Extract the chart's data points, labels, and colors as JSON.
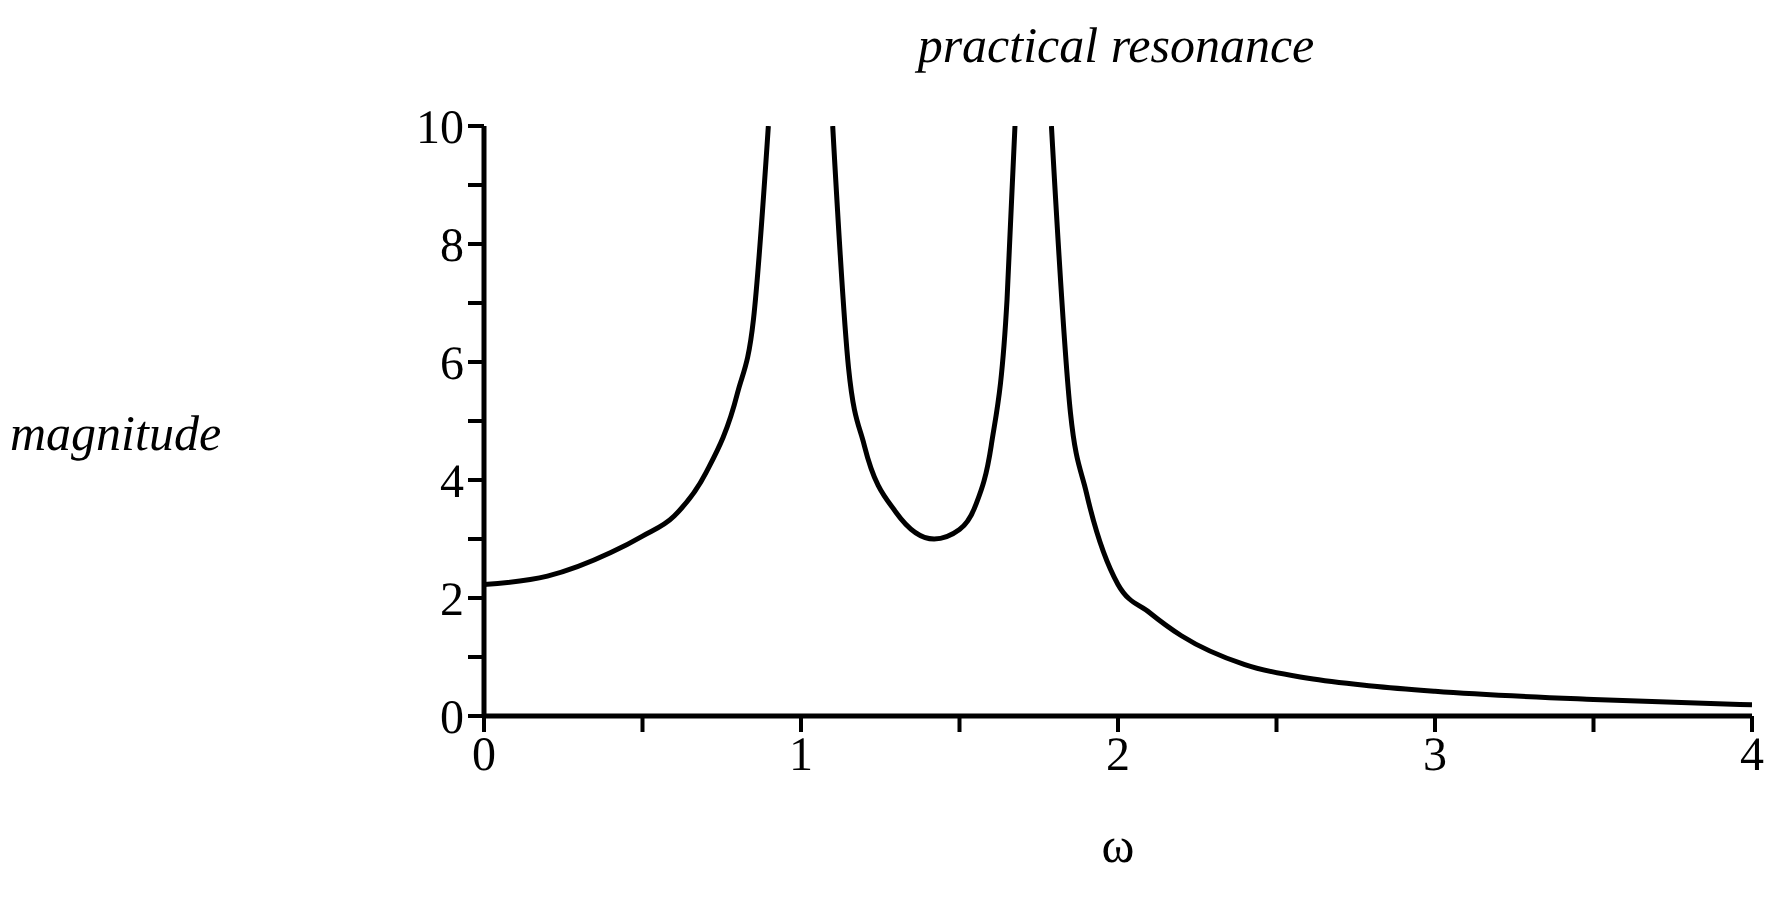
{
  "chart_data": {
    "type": "line",
    "title": "practical resonance",
    "xlabel": "ω",
    "ylabel": "magnitude",
    "x": [
      0,
      0.2,
      0.4,
      0.5,
      0.6,
      0.7,
      0.8,
      0.85,
      0.897,
      1.0,
      1.1,
      1.15,
      1.2,
      1.3,
      1.42,
      1.5,
      1.55,
      1.6,
      1.65,
      1.675,
      1.73,
      1.79,
      1.85,
      1.9,
      2.0,
      2.1,
      2.2,
      2.4,
      2.6,
      2.8,
      3.0,
      3.5,
      4.0
    ],
    "series": [
      {
        "color": "#000000",
        "values": [
          2.23,
          2.37,
          2.77,
          3.05,
          3.39,
          4.12,
          5.48,
          6.72,
          10,
          null,
          10,
          5.9,
          4.58,
          3.45,
          3.0,
          3.16,
          3.56,
          4.58,
          7.06,
          10,
          null,
          10,
          5.14,
          3.79,
          2.23,
          1.75,
          1.36,
          0.87,
          0.64,
          0.51,
          0.42,
          0.28,
          0.19
        ]
      }
    ],
    "xlim": [
      0,
      4
    ],
    "ylim": [
      0,
      10
    ],
    "xticks": [
      0,
      {
        "value": 0.5,
        "label": null
      },
      1,
      {
        "value": 1.5,
        "label": null
      },
      2,
      {
        "value": 2.5,
        "label": null
      },
      3,
      {
        "value": 3.5,
        "label": null
      },
      4
    ],
    "yticks": [
      0,
      {
        "value": 1,
        "label": null
      },
      2,
      {
        "value": 3,
        "label": null
      },
      4,
      {
        "value": 5,
        "label": null
      },
      6,
      {
        "value": 7,
        "label": null
      },
      8,
      {
        "value": 9,
        "label": null
      },
      10
    ],
    "grid": false,
    "legend": false,
    "marker": "none",
    "line_style": "solid"
  }
}
